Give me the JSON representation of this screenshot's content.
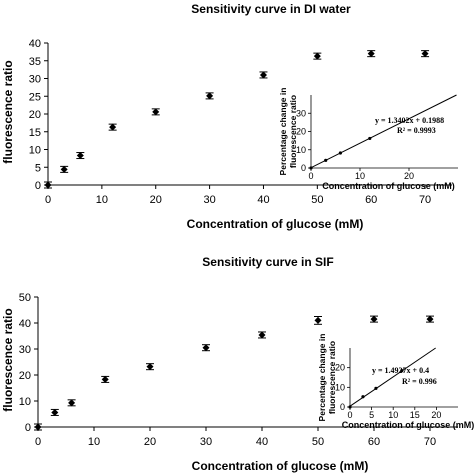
{
  "chart_data": [
    {
      "type": "scatter",
      "title": "Sensitivity curve in DI water",
      "xlabel": "Concentration of glucose (mM)",
      "ylabel": "fluorescence ratio",
      "xlim": [
        0,
        75
      ],
      "ylim": [
        0,
        40
      ],
      "xticks": [
        0,
        10,
        20,
        30,
        40,
        50,
        60,
        70
      ],
      "yticks": [
        0,
        5,
        10,
        15,
        20,
        25,
        30,
        35,
        40
      ],
      "grid": false,
      "series": [
        {
          "x": [
            0,
            3,
            6,
            12,
            20,
            30,
            40,
            50,
            60,
            70
          ],
          "y": [
            0,
            4.4,
            8.3,
            16.3,
            20.6,
            25.1,
            31.0,
            36.3,
            37.0,
            37.0
          ],
          "error": [
            0.2,
            0.5,
            0.6,
            0.8,
            0.7,
            0.6,
            0.5,
            0.8,
            0.6,
            0.7
          ]
        }
      ],
      "inset": {
        "type": "scatter",
        "xlabel": "Concentration of glucose (mM)",
        "ylabel": "Percentage change in fluorescence ratio",
        "xlim": [
          0,
          30
        ],
        "ylim": [
          0,
          40
        ],
        "xticks": [
          0,
          10,
          20
        ],
        "yticks": [
          0,
          10,
          20,
          30
        ],
        "x": [
          0,
          3,
          6,
          12
        ],
        "y": [
          0,
          4.2,
          8.2,
          16.2
        ],
        "trendline": {
          "slope": 1.3402,
          "intercept": 0.1988
        },
        "equation": "y = 1.3402x + 0.1988",
        "r2": "R² = 0.9993"
      }
    },
    {
      "type": "scatter",
      "title": "Sensitivity curve in SIF",
      "xlabel": "Concentration of glucose (mM)",
      "ylabel": "fluorescence ratio",
      "xlim": [
        0,
        75
      ],
      "ylim": [
        0,
        50
      ],
      "xticks": [
        0,
        10,
        20,
        30,
        40,
        50,
        60,
        70
      ],
      "yticks": [
        0,
        10,
        20,
        30,
        40,
        50
      ],
      "grid": false,
      "series": [
        {
          "x": [
            0,
            3,
            6,
            12,
            20,
            30,
            40,
            50,
            60,
            70
          ],
          "y": [
            0,
            5.6,
            9.3,
            18.3,
            23.2,
            30.5,
            35.4,
            41.0,
            41.5,
            41.5
          ],
          "error": [
            0.2,
            0.7,
            0.9,
            0.7,
            0.6,
            0.8,
            0.7,
            1.5,
            0.8,
            0.8
          ]
        }
      ],
      "inset": {
        "type": "scatter",
        "xlabel": "Concentration of glucose (mM)",
        "ylabel": "Percentage change in fluorescence ratio",
        "xlim": [
          0,
          25
        ],
        "ylim": [
          0,
          30
        ],
        "xticks": [
          0,
          5,
          10,
          15,
          20
        ],
        "yticks": [
          0,
          10,
          20
        ],
        "x": [
          0,
          3,
          6,
          12
        ],
        "y": [
          0,
          5.2,
          9.5,
          18.5
        ],
        "trendline": {
          "slope": 1.4927,
          "intercept": 0.4
        },
        "equation": "y = 1.4927x + 0.4",
        "r2": "R² = 0.996"
      }
    }
  ]
}
